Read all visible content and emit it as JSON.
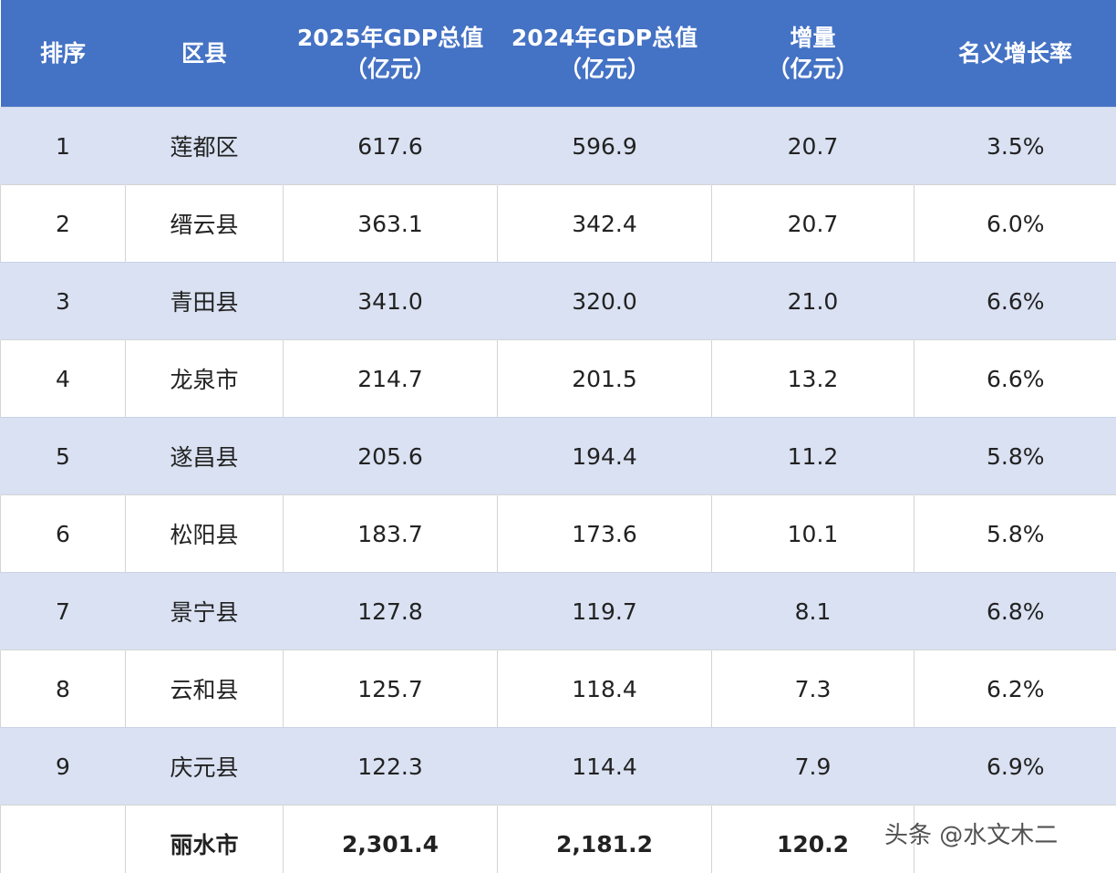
{
  "table": {
    "header": [
      "排序",
      "区县",
      "2025年GDP总值\n（亿元）",
      "2024年GDP总值\n（亿元）",
      "增量\n（亿元）",
      "名义增长率"
    ],
    "rows": [
      [
        "1",
        "莲都区",
        "617.6",
        "596.9",
        "20.7",
        "3.5%"
      ],
      [
        "2",
        "缙云县",
        "363.1",
        "342.4",
        "20.7",
        "6.0%"
      ],
      [
        "3",
        "青田县",
        "341.0",
        "320.0",
        "21.0",
        "6.6%"
      ],
      [
        "4",
        "龙泉市",
        "214.7",
        "201.5",
        "13.2",
        "6.6%"
      ],
      [
        "5",
        "遂昌县",
        "205.6",
        "194.4",
        "11.2",
        "5.8%"
      ],
      [
        "6",
        "松阳县",
        "183.7",
        "173.6",
        "10.1",
        "5.8%"
      ],
      [
        "7",
        "景宁县",
        "127.8",
        "119.7",
        "8.1",
        "6.8%"
      ],
      [
        "8",
        "云和县",
        "125.7",
        "118.4",
        "7.3",
        "6.2%"
      ],
      [
        "9",
        "庆元县",
        "122.3",
        "114.4",
        "7.9",
        "6.9%"
      ]
    ],
    "total": [
      null,
      "丽水市",
      "2,301.4",
      "2,181.2",
      "120.2",
      null
    ]
  },
  "watermark": "头条 @水文木二"
}
